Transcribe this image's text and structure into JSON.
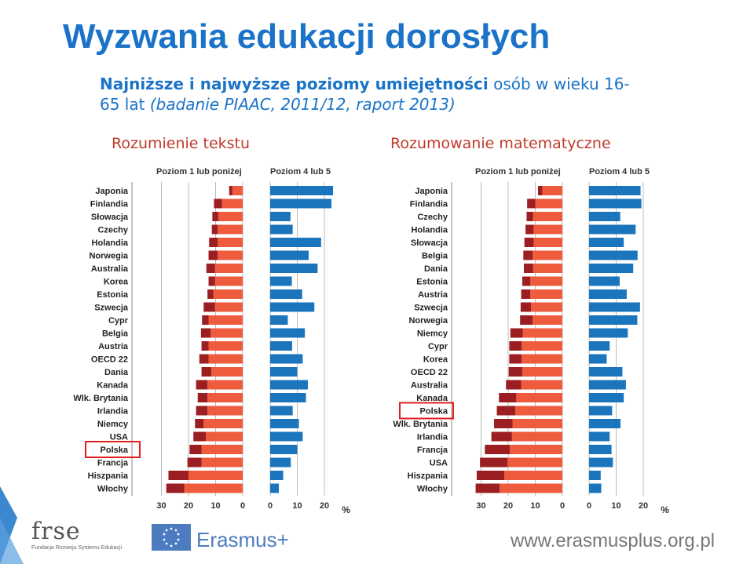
{
  "title": "Wyzwania edukacji dorosłych",
  "subtitle": {
    "bold": "Najniższe i najwyższe poziomy umiejętności",
    "normal": " osób w wieku 16-65 lat ",
    "italic": "(badanie PIAAC, 2011/12, raport 2013)"
  },
  "colors": {
    "low_dark": "#9b1f22",
    "low_light": "#ee5b3d",
    "high": "#1b75bc",
    "highlight_box": "#e02020",
    "title": "#1a73c8",
    "panel_title": "#c0392b"
  },
  "chart_data": [
    {
      "type": "bar",
      "panel_title": "Rozumienie tekstu",
      "left_header": "Poziom 1 lub poniżej",
      "right_header": "Poziom 4 lub 5",
      "unit": "%",
      "highlighted": "Polska",
      "left_ticks": [
        "30",
        "20",
        "10",
        "0"
      ],
      "right_ticks": [
        "0",
        "10",
        "20"
      ],
      "categories": [
        "Japonia",
        "Finlandia",
        "Słowacja",
        "Czechy",
        "Holandia",
        "Norwegia",
        "Australia",
        "Korea",
        "Estonia",
        "Szwecja",
        "Cypr",
        "Belgia",
        "Austria",
        "OECD 22",
        "Dania",
        "Kanada",
        "Wlk. Brytania",
        "Irlandia",
        "Niemcy",
        "USA",
        "Polska",
        "Francja",
        "Hiszpania",
        "Włochy"
      ],
      "series": [
        {
          "values": [
            1.2,
            3.0,
            2.2,
            2.2,
            3.2,
            3.4,
            3.2,
            2.4,
            2.2,
            4.2,
            2.4,
            3.6,
            2.6,
            3.4,
            3.6,
            4.2,
            3.6,
            4.2,
            3.2,
            4.6,
            4.4,
            5.2,
            7.4,
            6.6
          ]
        },
        {
          "values": [
            3.8,
            7.6,
            9.0,
            9.2,
            9.2,
            9.2,
            10.2,
            10.2,
            10.8,
            10.2,
            12.6,
            11.8,
            12.6,
            12.6,
            11.6,
            13.0,
            13.0,
            13.0,
            14.4,
            13.6,
            15.2,
            15.2,
            20.0,
            21.6
          ]
        },
        {
          "values": [
            23.2,
            22.6,
            7.5,
            8.3,
            18.8,
            14.2,
            17.5,
            8.0,
            11.8,
            16.3,
            6.5,
            12.8,
            8.1,
            12.0,
            10.0,
            13.9,
            13.2,
            8.3,
            10.6,
            12.0,
            10.0,
            7.6,
            4.8,
            3.2
          ]
        }
      ],
      "xlim_left": [
        0,
        32
      ],
      "xlim_right": [
        0,
        28
      ]
    },
    {
      "type": "bar",
      "panel_title": "Rozumowanie matematyczne",
      "left_header": "Poziom 1 lub poniżej",
      "right_header": "Poziom 4 lub 5",
      "unit": "%",
      "highlighted": "Polska",
      "left_ticks": [
        "30",
        "20",
        "10",
        "0"
      ],
      "right_ticks": [
        "0",
        "10",
        "20"
      ],
      "categories": [
        "Japonia",
        "Finlandia",
        "Czechy",
        "Holandia",
        "Słowacja",
        "Belgia",
        "Dania",
        "Estonia",
        "Austria",
        "Szwecja",
        "Norwegia",
        "Niemcy",
        "Cypr",
        "Korea",
        "OECD 22",
        "Australia",
        "Kanada",
        "Polska",
        "Wlk. Brytania",
        "Irlandia",
        "Francja",
        "USA",
        "Hiszpania",
        "Włochy"
      ],
      "series": [
        {
          "values": [
            1.6,
            3.0,
            2.4,
            3.0,
            3.4,
            3.4,
            3.4,
            3.0,
            3.4,
            3.8,
            4.6,
            4.6,
            4.6,
            4.6,
            5.0,
            5.6,
            6.4,
            6.8,
            6.8,
            7.6,
            9.2,
            10.2,
            10.2,
            8.8
          ]
        },
        {
          "values": [
            7.4,
            10.0,
            10.8,
            10.6,
            10.6,
            11.0,
            10.8,
            11.8,
            11.8,
            11.6,
            11.0,
            14.6,
            15.0,
            15.0,
            14.8,
            15.2,
            17.0,
            17.4,
            18.4,
            18.6,
            19.4,
            20.2,
            21.4,
            23.2
          ]
        },
        {
          "values": [
            19.0,
            19.3,
            11.5,
            17.2,
            12.8,
            17.9,
            16.3,
            11.3,
            13.9,
            18.8,
            17.8,
            14.3,
            7.6,
            6.5,
            12.3,
            13.6,
            12.8,
            8.5,
            11.6,
            7.6,
            8.3,
            8.8,
            4.3,
            4.5
          ]
        }
      ],
      "xlim_left": [
        0,
        32
      ],
      "xlim_right": [
        0,
        28
      ]
    }
  ],
  "footer": {
    "frse_logo": "frse",
    "frse_sub": "Fundacja Rozwoju Systemu Edukacji",
    "erasmus": "Erasmus+",
    "url": "www.erasmusplus.org.pl"
  }
}
